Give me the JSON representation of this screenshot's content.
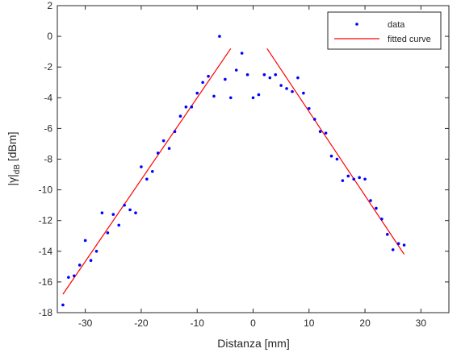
{
  "chart_data": {
    "type": "scatter",
    "title": "",
    "xlabel": "Distanza [mm]",
    "ylabel": {
      "base": "|γ|",
      "subscript": "dB",
      "unit": " [dBm]"
    },
    "xlim": [
      -35,
      35
    ],
    "ylim": [
      -18,
      2
    ],
    "xticks": [
      -30,
      -20,
      -10,
      0,
      10,
      20,
      30
    ],
    "yticks": [
      2,
      0,
      -2,
      -4,
      -6,
      -8,
      -10,
      -12,
      -14,
      -16,
      -18
    ],
    "grid": false,
    "legend_position": "top-right",
    "series": [
      {
        "name": "data",
        "style": "points",
        "color": "#0000ff",
        "points": [
          [
            -34,
            -17.5
          ],
          [
            -33,
            -15.7
          ],
          [
            -32,
            -15.6
          ],
          [
            -31,
            -14.9
          ],
          [
            -30,
            -13.3
          ],
          [
            -29,
            -14.6
          ],
          [
            -28,
            -14
          ],
          [
            -27,
            -11.5
          ],
          [
            -26,
            -12.8
          ],
          [
            -25,
            -11.6
          ],
          [
            -24,
            -12.3
          ],
          [
            -23,
            -11
          ],
          [
            -22,
            -11.3
          ],
          [
            -21,
            -11.5
          ],
          [
            -20,
            -8.5
          ],
          [
            -19,
            -9.3
          ],
          [
            -18,
            -8.8
          ],
          [
            -17,
            -7.6
          ],
          [
            -16,
            -6.8
          ],
          [
            -15,
            -7.3
          ],
          [
            -14,
            -6.2
          ],
          [
            -13,
            -5.2
          ],
          [
            -12,
            -4.6
          ],
          [
            -11,
            -4.6
          ],
          [
            -10,
            -3.7
          ],
          [
            -9,
            -3
          ],
          [
            -8,
            -2.6
          ],
          [
            -7,
            -3.9
          ],
          [
            -6,
            0
          ],
          [
            -5,
            -2.8
          ],
          [
            -4,
            -4
          ],
          [
            -3,
            -2.2
          ],
          [
            -2,
            -1.1
          ],
          [
            -1,
            -2.5
          ],
          [
            0,
            -4
          ],
          [
            1,
            -3.8
          ],
          [
            2,
            -2.5
          ],
          [
            3,
            -2.7
          ],
          [
            4,
            -2.5
          ],
          [
            5,
            -3.2
          ],
          [
            6,
            -3.4
          ],
          [
            7,
            -3.6
          ],
          [
            8,
            -2.7
          ],
          [
            9,
            -3.7
          ],
          [
            10,
            -4.7
          ],
          [
            11,
            -5.4
          ],
          [
            12,
            -6.2
          ],
          [
            13,
            -6.3
          ],
          [
            14,
            -7.8
          ],
          [
            15,
            -8
          ],
          [
            16,
            -9.4
          ],
          [
            17,
            -9.1
          ],
          [
            18,
            -9.3
          ],
          [
            19,
            -9.2
          ],
          [
            20,
            -9.3
          ],
          [
            21,
            -10.7
          ],
          [
            22,
            -11.2
          ],
          [
            23,
            -11.9
          ],
          [
            24,
            -12.9
          ],
          [
            25,
            -13.9
          ],
          [
            26,
            -13.5
          ],
          [
            27,
            -13.6
          ]
        ]
      },
      {
        "name": "fitted curve",
        "style": "line",
        "color": "#ff0000",
        "segments": [
          [
            [
              -34,
              -16.8
            ],
            [
              -4,
              -0.8
            ]
          ],
          [
            [
              2.5,
              -0.8
            ],
            [
              27,
              -14.2
            ]
          ]
        ]
      }
    ]
  }
}
